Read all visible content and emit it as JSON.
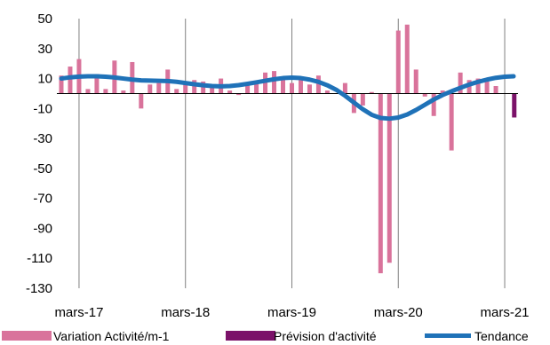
{
  "chart_data": {
    "type": "bar",
    "title": "",
    "xlabel": "",
    "ylabel": "",
    "ylim": [
      -130,
      50
    ],
    "yticks": [
      50,
      30,
      10,
      -10,
      -30,
      -50,
      -70,
      -90,
      -110,
      -130
    ],
    "xtick_labels": [
      "mars-17",
      "mars-18",
      "mars-19",
      "mars-20",
      "mars-21"
    ],
    "grid": "vertical at yearly ticks",
    "legend_position": "bottom",
    "months": [
      "2017-01",
      "2017-02",
      "2017-03",
      "2017-04",
      "2017-05",
      "2017-06",
      "2017-07",
      "2017-08",
      "2017-09",
      "2017-10",
      "2017-11",
      "2017-12",
      "2018-01",
      "2018-02",
      "2018-03",
      "2018-04",
      "2018-05",
      "2018-06",
      "2018-07",
      "2018-08",
      "2018-09",
      "2018-10",
      "2018-11",
      "2018-12",
      "2019-01",
      "2019-02",
      "2019-03",
      "2019-04",
      "2019-05",
      "2019-06",
      "2019-07",
      "2019-08",
      "2019-09",
      "2019-10",
      "2019-11",
      "2019-12",
      "2020-01",
      "2020-02",
      "2020-03",
      "2020-04",
      "2020-05",
      "2020-06",
      "2020-07",
      "2020-08",
      "2020-09",
      "2020-10",
      "2020-11",
      "2020-12",
      "2021-01",
      "2021-02",
      "2021-03",
      "2021-04"
    ],
    "series": [
      {
        "name": "Variation Activité/m-1",
        "type": "bar",
        "color": "#d9739b",
        "values": [
          12,
          18,
          23,
          3,
          13,
          3,
          22,
          2,
          21,
          -10,
          6,
          7,
          16,
          3,
          6,
          9,
          8,
          4,
          10,
          2,
          -1,
          6,
          7,
          14,
          15,
          10,
          7,
          9,
          6,
          12,
          2,
          0,
          7,
          -13,
          -8,
          1,
          -120,
          -113,
          42,
          46,
          16,
          -2,
          -15,
          2,
          -38,
          14,
          9,
          10,
          8,
          5,
          null,
          null
        ]
      },
      {
        "name": "Prévision d'activité",
        "type": "bar",
        "color": "#7b1269",
        "values": [
          null,
          null,
          null,
          null,
          null,
          null,
          null,
          null,
          null,
          null,
          null,
          null,
          null,
          null,
          null,
          null,
          null,
          null,
          null,
          null,
          null,
          null,
          null,
          null,
          null,
          null,
          null,
          null,
          null,
          null,
          null,
          null,
          null,
          null,
          null,
          null,
          null,
          null,
          null,
          null,
          null,
          null,
          null,
          null,
          null,
          null,
          null,
          null,
          null,
          null,
          null,
          -16
        ]
      },
      {
        "name": "Tendance",
        "type": "line",
        "color": "#1f72b8",
        "values": [
          10,
          10.8,
          11.3,
          11.5,
          11.5,
          11.2,
          10.7,
          10,
          9.3,
          8.8,
          8.6,
          8.5,
          8.3,
          7.8,
          7,
          6.2,
          5.5,
          5,
          4.8,
          5,
          5.6,
          6.5,
          7.5,
          8.5,
          9.5,
          10.3,
          10.6,
          10.3,
          9.3,
          7.8,
          5.5,
          2.5,
          -1.5,
          -6,
          -10.5,
          -14.2,
          -16.3,
          -16.8,
          -16,
          -14,
          -11,
          -7.5,
          -4,
          -1,
          1.5,
          3.8,
          6,
          7.8,
          9.3,
          10.5,
          11.2,
          11.5
        ]
      }
    ]
  },
  "legend": [
    {
      "label": "Variation Activité/m-1",
      "swatch": "bar",
      "color": "#d9739b"
    },
    {
      "label": "Prévision d'activité",
      "swatch": "bar",
      "color": "#7b1269"
    },
    {
      "label": "Tendance",
      "swatch": "line",
      "color": "#1f72b8"
    }
  ]
}
